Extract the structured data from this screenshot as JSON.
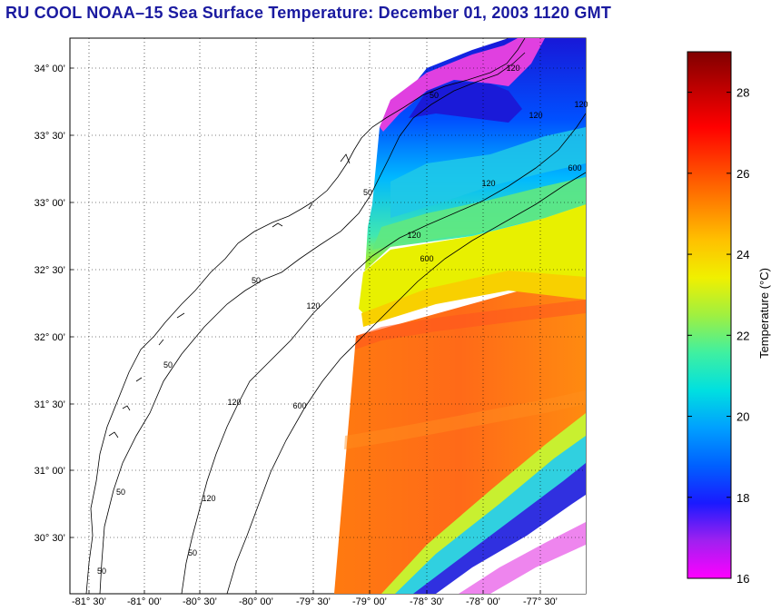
{
  "title": "RU COOL  NOAA–15  Sea Surface Temperature:  December 01, 2003 1120 GMT",
  "map": {
    "lon_labels": [
      "-81° 30’",
      "-81° 00’",
      "-80° 30’",
      "-80° 00’",
      "-79° 30’",
      "-79° 00’",
      "-78° 30’",
      "-78° 00’",
      "-77° 30’"
    ],
    "lat_labels": [
      "34° 00’",
      "33° 30’",
      "33° 00’",
      "32° 30’",
      "32° 00’",
      "31° 30’",
      "31° 00’",
      "30° 30’"
    ],
    "contour_labels": [
      "50",
      "120",
      "600",
      "50",
      "120",
      "600",
      "50",
      "120",
      "600",
      "50",
      "120",
      "120",
      "50",
      "120",
      "50",
      "50",
      "120",
      "120"
    ]
  },
  "colorbar": {
    "label": "Temperature (°C)",
    "ticks": [
      "28",
      "26",
      "24",
      "22",
      "20",
      "18",
      "16"
    ],
    "min": 16,
    "max": 29,
    "colors": [
      "#ff00ff",
      "#a020f0",
      "#1a1aff",
      "#0060ff",
      "#00a0ff",
      "#00e0e0",
      "#40f0a0",
      "#a0f040",
      "#f0f000",
      "#ffc000",
      "#ff8000",
      "#ff4000",
      "#ff0000",
      "#c00000",
      "#800000"
    ]
  }
}
